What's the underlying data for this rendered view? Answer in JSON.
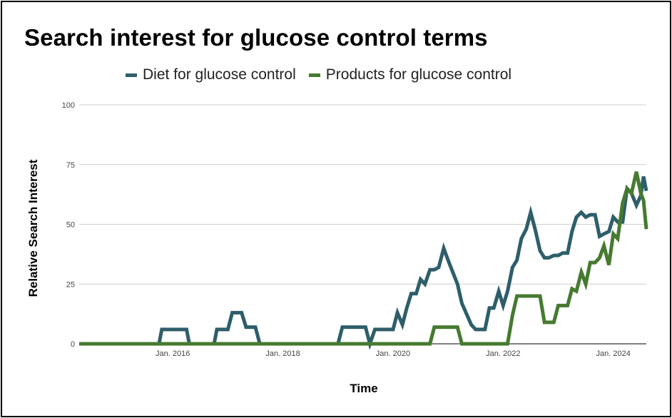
{
  "chart_data": {
    "type": "line",
    "title": "Search interest for glucose control terms",
    "xlabel": "Time",
    "ylabel": "Relative Search Interest",
    "ylim": [
      0,
      100
    ],
    "yticks": [
      0,
      25,
      50,
      75,
      100
    ],
    "xlim": [
      2014.3,
      2024.6
    ],
    "xticks": [
      {
        "value": 2016.0,
        "label": "Jan. 2016"
      },
      {
        "value": 2018.0,
        "label": "Jan. 2018"
      },
      {
        "value": 2020.0,
        "label": "Jan. 2020"
      },
      {
        "value": 2022.0,
        "label": "Jan. 2022"
      },
      {
        "value": 2024.0,
        "label": "Jan. 2024"
      }
    ],
    "grid": true,
    "legend_position": "top",
    "series": [
      {
        "name": "Diet for glucose control",
        "color": "#2e5e6a",
        "points": [
          [
            2014.3,
            0
          ],
          [
            2015.75,
            0
          ],
          [
            2015.8,
            6
          ],
          [
            2016.25,
            6
          ],
          [
            2016.3,
            0
          ],
          [
            2016.75,
            0
          ],
          [
            2016.8,
            6
          ],
          [
            2017.0,
            6
          ],
          [
            2017.08,
            13
          ],
          [
            2017.25,
            13
          ],
          [
            2017.33,
            7
          ],
          [
            2017.5,
            7
          ],
          [
            2017.58,
            0
          ],
          [
            2019.0,
            0
          ],
          [
            2019.08,
            7
          ],
          [
            2019.5,
            7
          ],
          [
            2019.58,
            0
          ],
          [
            2019.67,
            6
          ],
          [
            2020.0,
            6
          ],
          [
            2020.08,
            13
          ],
          [
            2020.17,
            8
          ],
          [
            2020.25,
            15
          ],
          [
            2020.33,
            21
          ],
          [
            2020.42,
            21
          ],
          [
            2020.5,
            27
          ],
          [
            2020.58,
            25
          ],
          [
            2020.67,
            31
          ],
          [
            2020.75,
            31
          ],
          [
            2020.83,
            32
          ],
          [
            2020.92,
            40
          ],
          [
            2021.0,
            35
          ],
          [
            2021.17,
            25
          ],
          [
            2021.25,
            17
          ],
          [
            2021.42,
            8
          ],
          [
            2021.5,
            6
          ],
          [
            2021.67,
            6
          ],
          [
            2021.75,
            15
          ],
          [
            2021.83,
            15
          ],
          [
            2021.92,
            22
          ],
          [
            2022.0,
            16
          ],
          [
            2022.08,
            22
          ],
          [
            2022.17,
            32
          ],
          [
            2022.25,
            35
          ],
          [
            2022.33,
            44
          ],
          [
            2022.42,
            48
          ],
          [
            2022.5,
            55
          ],
          [
            2022.58,
            48
          ],
          [
            2022.67,
            39
          ],
          [
            2022.75,
            36
          ],
          [
            2022.83,
            36
          ],
          [
            2022.92,
            37
          ],
          [
            2023.0,
            37
          ],
          [
            2023.08,
            38
          ],
          [
            2023.17,
            38
          ],
          [
            2023.25,
            47
          ],
          [
            2023.33,
            53
          ],
          [
            2023.42,
            55
          ],
          [
            2023.5,
            53
          ],
          [
            2023.58,
            54
          ],
          [
            2023.67,
            54
          ],
          [
            2023.75,
            45
          ],
          [
            2023.83,
            46
          ],
          [
            2023.92,
            47
          ],
          [
            2024.0,
            53
          ],
          [
            2024.08,
            51
          ],
          [
            2024.17,
            51
          ],
          [
            2024.25,
            65
          ],
          [
            2024.33,
            63
          ],
          [
            2024.42,
            58
          ],
          [
            2024.5,
            62
          ],
          [
            2024.55,
            70
          ],
          [
            2024.6,
            64
          ]
        ]
      },
      {
        "name": "Products for glucose control",
        "color": "#467a30",
        "points": [
          [
            2014.3,
            0
          ],
          [
            2020.67,
            0
          ],
          [
            2020.75,
            7
          ],
          [
            2021.17,
            7
          ],
          [
            2021.25,
            0
          ],
          [
            2022.08,
            0
          ],
          [
            2022.17,
            12
          ],
          [
            2022.25,
            20
          ],
          [
            2022.58,
            20
          ],
          [
            2022.67,
            20
          ],
          [
            2022.75,
            9
          ],
          [
            2022.92,
            9
          ],
          [
            2023.0,
            16
          ],
          [
            2023.17,
            16
          ],
          [
            2023.25,
            23
          ],
          [
            2023.33,
            22
          ],
          [
            2023.42,
            30
          ],
          [
            2023.5,
            25
          ],
          [
            2023.58,
            34
          ],
          [
            2023.67,
            34
          ],
          [
            2023.75,
            36
          ],
          [
            2023.83,
            41
          ],
          [
            2023.92,
            33
          ],
          [
            2024.0,
            46
          ],
          [
            2024.08,
            44
          ],
          [
            2024.17,
            59
          ],
          [
            2024.25,
            65
          ],
          [
            2024.33,
            63
          ],
          [
            2024.42,
            72
          ],
          [
            2024.5,
            63
          ],
          [
            2024.55,
            60
          ],
          [
            2024.6,
            48
          ]
        ]
      }
    ]
  }
}
